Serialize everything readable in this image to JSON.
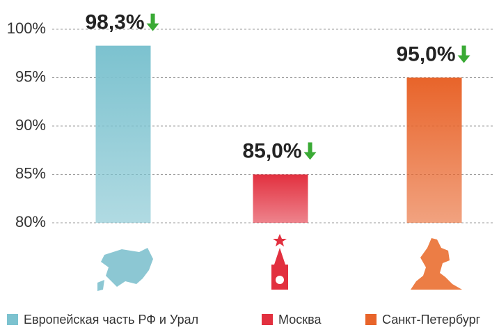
{
  "chart_data": {
    "type": "bar",
    "categories": [
      "Европейская часть РФ и Урал",
      "Москва",
      "Санкт-Петербург"
    ],
    "values": [
      98.3,
      85.0,
      95.0
    ],
    "value_labels": [
      "98,3%",
      "85,0%",
      "95,0%"
    ],
    "colors": [
      "#7cc2cf",
      "#e2303f",
      "#e8642a"
    ],
    "ylim": [
      80,
      100
    ],
    "yticks": [
      {
        "value": 80,
        "label": "80%"
      },
      {
        "value": 85,
        "label": "85%"
      },
      {
        "value": 90,
        "label": "90%"
      },
      {
        "value": 95,
        "label": "95%"
      },
      {
        "value": 100,
        "label": "100%"
      }
    ],
    "grid": true
  }
}
